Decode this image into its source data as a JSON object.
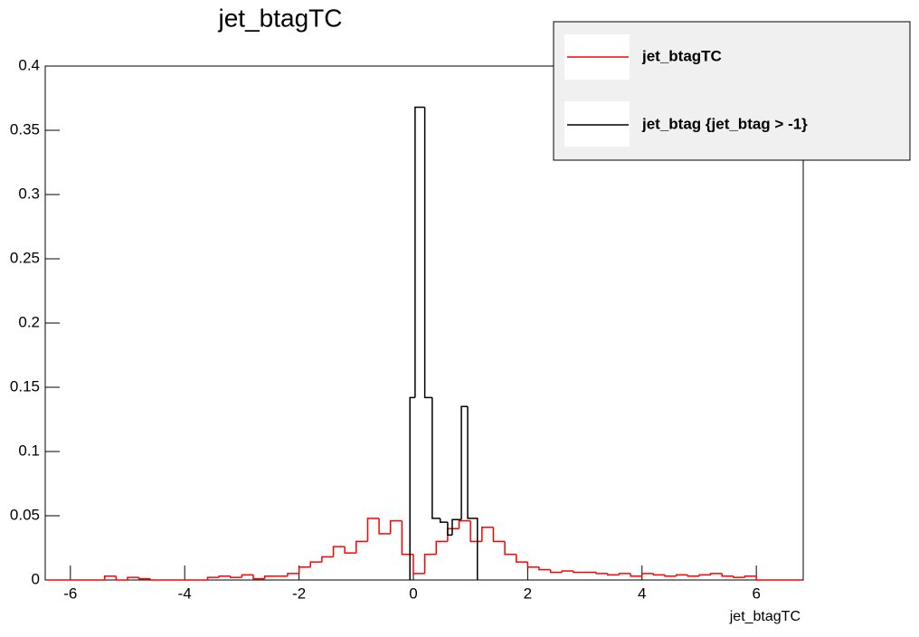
{
  "chart_data": {
    "type": "histogram",
    "title": "jet_btagTC",
    "x_label": "jet_btagTC",
    "xlim": [
      -6.44,
      6.82
    ],
    "xticks": [
      -6,
      -4,
      -2,
      0,
      2,
      4,
      6
    ],
    "ylim": [
      0,
      0.4
    ],
    "yticks": [
      0,
      0.05,
      0.1,
      0.15,
      0.2,
      0.25,
      0.3,
      0.35,
      0.4
    ],
    "series": [
      {
        "name": "jet_btagTC",
        "color": "#ff0000",
        "bins": [
          -6.4,
          -6.2,
          -6.0,
          -5.8,
          -5.6,
          -5.4,
          -5.2,
          -5.0,
          -4.8,
          -4.6,
          -4.4,
          -4.2,
          -4.0,
          -3.8,
          -3.6,
          -3.4,
          -3.2,
          -3.0,
          -2.8,
          -2.6,
          -2.4,
          -2.2,
          -2.0,
          -1.8,
          -1.6,
          -1.4,
          -1.2,
          -1.0,
          -0.8,
          -0.6,
          -0.4,
          -0.2,
          0.0,
          0.2,
          0.4,
          0.6,
          0.8,
          1.0,
          1.2,
          1.4,
          1.6,
          1.8,
          2.0,
          2.2,
          2.4,
          2.6,
          2.8,
          3.0,
          3.2,
          3.4,
          3.6,
          3.8,
          4.0,
          4.2,
          4.4,
          4.6,
          4.8,
          5.0,
          5.2,
          5.4,
          5.6,
          5.8,
          6.0,
          6.2,
          6.4,
          6.6,
          6.8
        ],
        "values": [
          0,
          0,
          0,
          0,
          0,
          0.003,
          0,
          0.002,
          0.001,
          0,
          0,
          0,
          0,
          0,
          0.002,
          0.003,
          0.002,
          0.004,
          0.001,
          0.003,
          0.003,
          0.005,
          0.01,
          0.014,
          0.018,
          0.026,
          0.021,
          0.03,
          0.048,
          0.036,
          0.046,
          0.02,
          0.005,
          0.02,
          0.03,
          0.04,
          0.046,
          0.03,
          0.041,
          0.03,
          0.02,
          0.014,
          0.01,
          0.008,
          0.006,
          0.007,
          0.006,
          0.006,
          0.005,
          0.004,
          0.005,
          0.003,
          0.005,
          0.004,
          0.003,
          0.004,
          0.003,
          0.004,
          0.005,
          0.003,
          0.002,
          0.003,
          0,
          0,
          0,
          0
        ]
      },
      {
        "name": "jet_btag {jet_btag > -1}",
        "color": "#000000",
        "bins": [
          -0.06,
          0.03,
          0.2,
          0.33,
          0.47,
          0.6,
          0.68,
          0.84,
          0.95,
          1.12
        ],
        "values": [
          0.142,
          0.368,
          0.142,
          0.048,
          0.045,
          0.035,
          0.047,
          0.135,
          0.048
        ]
      }
    ]
  }
}
